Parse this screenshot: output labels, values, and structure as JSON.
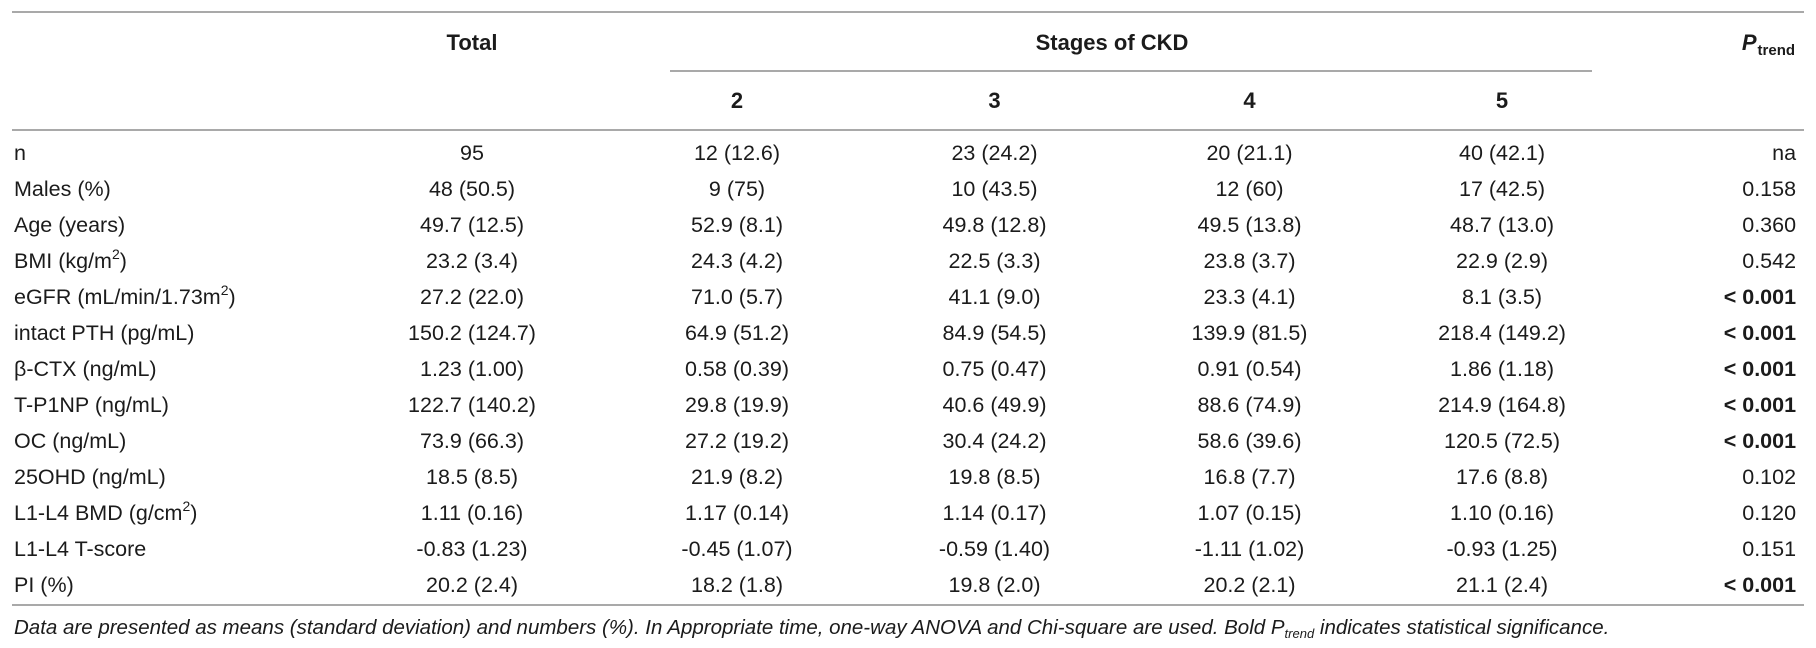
{
  "table": {
    "header": {
      "total_label": "Total",
      "stages_label": "Stages of CKD",
      "stage_columns": [
        "2",
        "3",
        "4",
        "5"
      ],
      "p_label": {
        "base": "P",
        "sub": "trend"
      }
    },
    "rows": [
      {
        "label": [
          {
            "t": "n"
          }
        ],
        "values": [
          "95",
          "12 (12.6)",
          "23 (24.2)",
          "20 (21.1)",
          "40 (42.1)"
        ],
        "p": "na",
        "p_bold": false
      },
      {
        "label": [
          {
            "t": "Males (%)"
          }
        ],
        "values": [
          "48 (50.5)",
          "9 (75)",
          "10 (43.5)",
          "12 (60)",
          "17 (42.5)"
        ],
        "p": "0.158",
        "p_bold": false
      },
      {
        "label": [
          {
            "t": "Age (years)"
          }
        ],
        "values": [
          "49.7 (12.5)",
          "52.9 (8.1)",
          "49.8 (12.8)",
          "49.5 (13.8)",
          "48.7 (13.0)"
        ],
        "p": "0.360",
        "p_bold": false
      },
      {
        "label": [
          {
            "t": "BMI (kg/m"
          },
          {
            "t": "2",
            "sup": true
          },
          {
            "t": ")"
          }
        ],
        "values": [
          "23.2 (3.4)",
          "24.3 (4.2)",
          "22.5 (3.3)",
          "23.8 (3.7)",
          "22.9 (2.9)"
        ],
        "p": "0.542",
        "p_bold": false
      },
      {
        "label": [
          {
            "t": "eGFR (mL/min/1.73m"
          },
          {
            "t": "2",
            "sup": true
          },
          {
            "t": ")"
          }
        ],
        "values": [
          "27.2 (22.0)",
          "71.0 (5.7)",
          "41.1 (9.0)",
          "23.3 (4.1)",
          "8.1 (3.5)"
        ],
        "p": "< 0.001",
        "p_bold": true
      },
      {
        "label": [
          {
            "t": "intact PTH (pg/mL)"
          }
        ],
        "values": [
          "150.2 (124.7)",
          "64.9 (51.2)",
          "84.9 (54.5)",
          "139.9 (81.5)",
          "218.4 (149.2)"
        ],
        "p": "< 0.001",
        "p_bold": true
      },
      {
        "label": [
          {
            "t": "β-CTX (ng/mL)"
          }
        ],
        "values": [
          "1.23 (1.00)",
          "0.58 (0.39)",
          "0.75 (0.47)",
          "0.91 (0.54)",
          "1.86 (1.18)"
        ],
        "p": "< 0.001",
        "p_bold": true
      },
      {
        "label": [
          {
            "t": "T-P1NP (ng/mL)"
          }
        ],
        "values": [
          "122.7 (140.2)",
          "29.8 (19.9)",
          "40.6 (49.9)",
          "88.6 (74.9)",
          "214.9 (164.8)"
        ],
        "p": "< 0.001",
        "p_bold": true
      },
      {
        "label": [
          {
            "t": "OC (ng/mL)"
          }
        ],
        "values": [
          "73.9 (66.3)",
          "27.2 (19.2)",
          "30.4 (24.2)",
          "58.6 (39.6)",
          "120.5 (72.5)"
        ],
        "p": "< 0.001",
        "p_bold": true
      },
      {
        "label": [
          {
            "t": "25OHD (ng/mL)"
          }
        ],
        "values": [
          "18.5 (8.5)",
          "21.9 (8.2)",
          "19.8 (8.5)",
          "16.8 (7.7)",
          "17.6 (8.8)"
        ],
        "p": "0.102",
        "p_bold": false
      },
      {
        "label": [
          {
            "t": "L1-L4 BMD (g/cm"
          },
          {
            "t": "2",
            "sup": true
          },
          {
            "t": ")"
          }
        ],
        "values": [
          "1.11 (0.16)",
          "1.17 (0.14)",
          "1.14 (0.17)",
          "1.07 (0.15)",
          "1.10 (0.16)"
        ],
        "p": "0.120",
        "p_bold": false
      },
      {
        "label": [
          {
            "t": "L1-L4 T-score"
          }
        ],
        "values": [
          "-0.83 (1.23)",
          "-0.45 (1.07)",
          "-0.59 (1.40)",
          "-1.11 (1.02)",
          "-0.93 (1.25)"
        ],
        "p": "0.151",
        "p_bold": false
      },
      {
        "label": [
          {
            "t": "PI (%)"
          }
        ],
        "values": [
          "20.2 (2.4)",
          "18.2 (1.8)",
          "19.8 (2.0)",
          "20.2 (2.1)",
          "21.1 (2.4)"
        ],
        "p": "< 0.001",
        "p_bold": true
      }
    ],
    "footnote": {
      "part1": "Data are presented as means (standard deviation) and numbers (%). In Appropriate time, one-way ANOVA and Chi-square are used. Bold ",
      "p": "P",
      "p_sub": "trend",
      "part2": " indicates statistical significance."
    },
    "rule_color": "#a9a9a9",
    "text_color": "#1b1b1b"
  }
}
